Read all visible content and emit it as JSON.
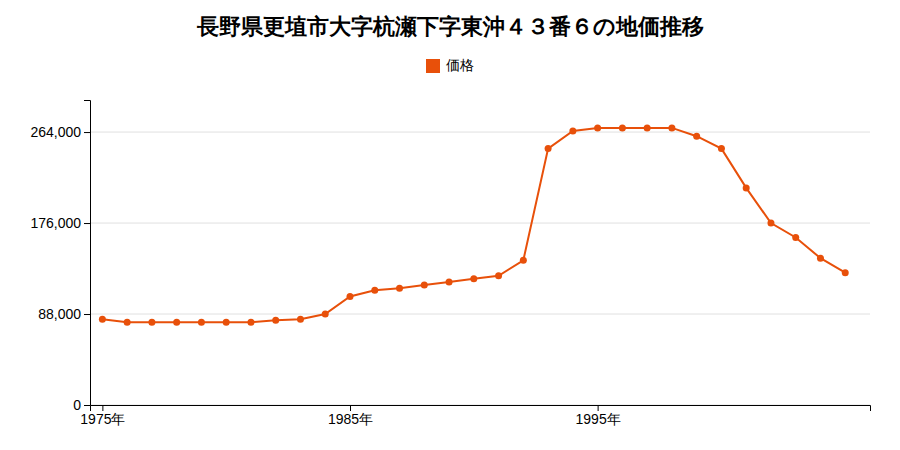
{
  "chart_data": {
    "type": "line",
    "title": "長野県更埴市大字杭瀬下字東沖４３番６の地価推移",
    "x": [
      1975,
      1976,
      1977,
      1978,
      1979,
      1980,
      1981,
      1982,
      1983,
      1984,
      1985,
      1986,
      1987,
      1988,
      1989,
      1990,
      1991,
      1992,
      1993,
      1994,
      1995,
      1996,
      1997,
      1998,
      1999,
      2000,
      2001,
      2002,
      2003,
      2004,
      2005
    ],
    "series": [
      {
        "name": "価格",
        "color": "#e8500a",
        "marker": "circle",
        "line_style": "solid",
        "values": [
          83000,
          80000,
          80000,
          80000,
          80000,
          80000,
          80000,
          82000,
          83000,
          88000,
          105000,
          111000,
          113000,
          116000,
          119000,
          122000,
          125000,
          140000,
          248000,
          265000,
          268000,
          268000,
          268000,
          268000,
          260000,
          248000,
          210000,
          176000,
          162000,
          142000,
          128000
        ]
      }
    ],
    "xlim": [
      1974.5,
      2006
    ],
    "xticks": [
      {
        "value": 1975,
        "label": "1975年"
      },
      {
        "value": 1985,
        "label": "1985年"
      },
      {
        "value": 1995,
        "label": "1995年"
      }
    ],
    "ylim": [
      0,
      295000
    ],
    "yticks": [
      0,
      {
        "value": 88000,
        "label": "88,000"
      },
      {
        "value": 176000,
        "label": "176,000"
      },
      {
        "value": 264000,
        "label": "264,000"
      }
    ],
    "grid": "y",
    "legend": "top"
  }
}
